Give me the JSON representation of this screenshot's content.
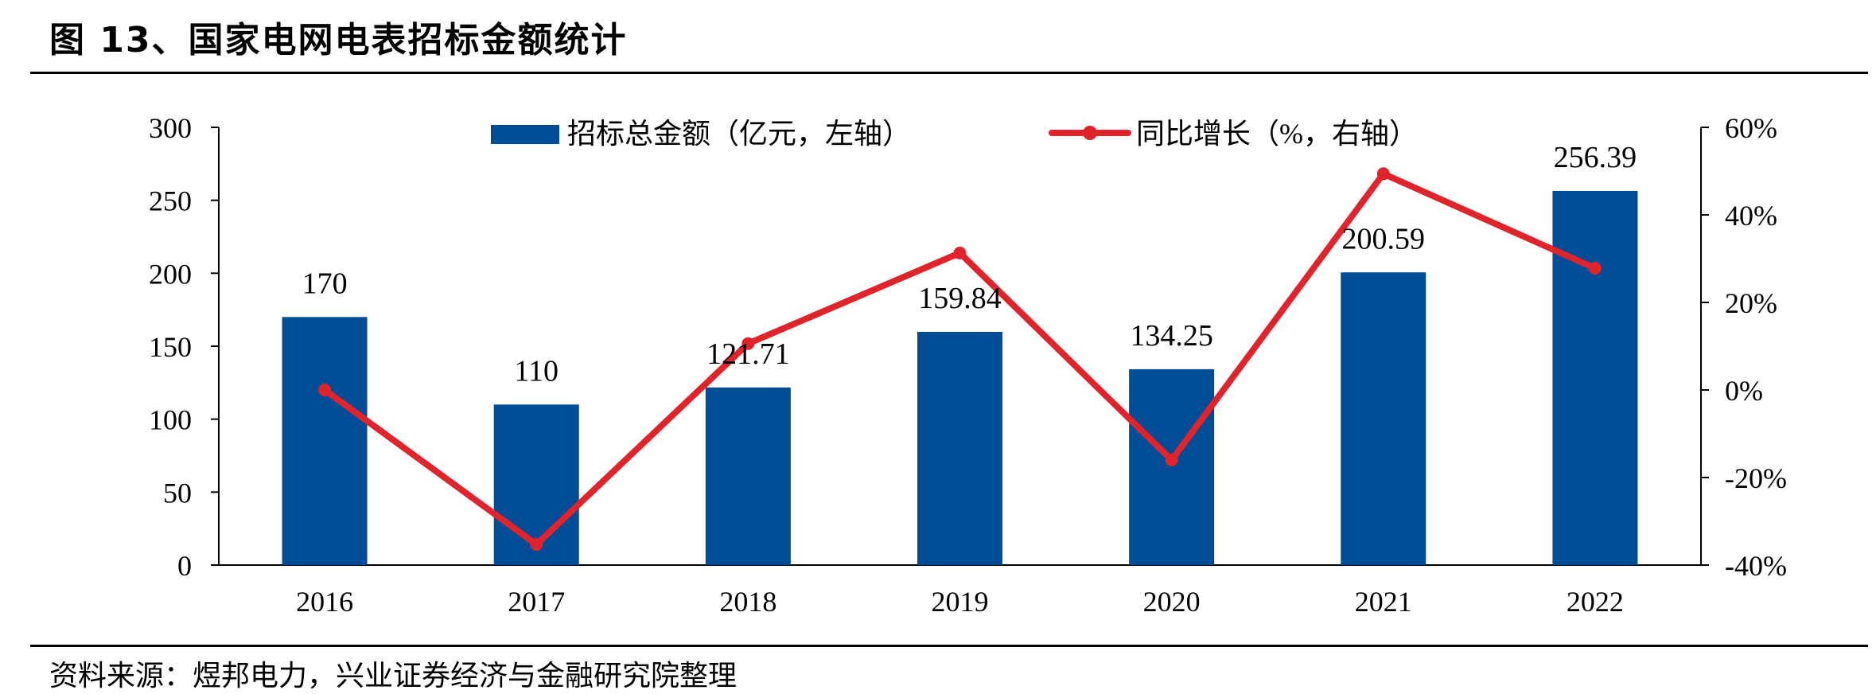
{
  "header": {
    "title": "图 13、国家电网电表招标金额统计"
  },
  "footer": {
    "source": "资料来源：煜邦电力，兴业证券经济与金融研究院整理"
  },
  "chart_data": {
    "type": "bar",
    "categories": [
      "2016",
      "2017",
      "2018",
      "2019",
      "2020",
      "2021",
      "2022"
    ],
    "series": [
      {
        "name": "招标总金额（亿元，左轴）",
        "type": "bar",
        "axis": "left",
        "color": "#004C97",
        "values": [
          170,
          110,
          121.71,
          159.84,
          134.25,
          200.59,
          256.39
        ],
        "data_labels": [
          "170",
          "110",
          "121.71",
          "159.84",
          "134.25",
          "200.59",
          "256.39"
        ]
      },
      {
        "name": "同比增长（%，右轴）",
        "type": "line",
        "axis": "right",
        "color": "#E0242B",
        "values": [
          0,
          -35.3,
          10.6,
          31.3,
          -16.0,
          49.4,
          27.8
        ]
      }
    ],
    "y_left": {
      "min": 0,
      "max": 300,
      "ticks": [
        "0",
        "50",
        "100",
        "150",
        "200",
        "250",
        "300"
      ]
    },
    "y_right": {
      "min": -40,
      "max": 60,
      "ticks": [
        "-40%",
        "-20%",
        "0%",
        "20%",
        "40%",
        "60%"
      ]
    },
    "legend": "top-center",
    "grid": false
  }
}
